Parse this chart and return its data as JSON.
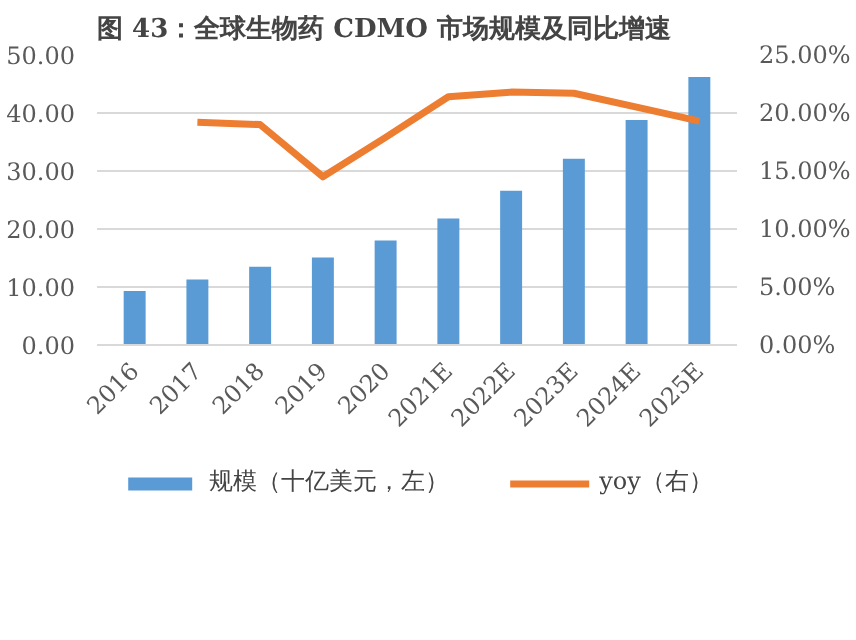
{
  "chart_data": {
    "type": "bar",
    "title": "图 43：全球生物药 CDMO 市场规模及同比增速",
    "categories": [
      "2016",
      "2017",
      "2018",
      "2019",
      "2020",
      "2021E",
      "2022E",
      "2023E",
      "2024E",
      "2025E"
    ],
    "series": [
      {
        "name": "规模（十亿美元，左）",
        "color": "#5b9bd5",
        "values": [
          9.3,
          11.3,
          13.5,
          15.1,
          18.0,
          21.8,
          26.6,
          32.1,
          38.8,
          46.2
        ]
      },
      {
        "name": "yoy（右）",
        "type": "line",
        "axis": "y2",
        "color": "#ed7d31",
        "values": [
          null,
          19.2,
          19.0,
          14.5,
          17.9,
          21.4,
          21.8,
          21.7,
          20.5,
          19.3
        ]
      }
    ],
    "ylim": [
      0,
      50
    ],
    "yticks": [
      {
        "value": 0,
        "label": "0.00"
      },
      {
        "value": 10,
        "label": "10.00"
      },
      {
        "value": 20,
        "label": "20.00"
      },
      {
        "value": 30,
        "label": "30.00"
      },
      {
        "value": 40,
        "label": "40.00"
      },
      {
        "value": 50,
        "label": "50.00"
      }
    ],
    "y2lim": [
      0,
      25
    ],
    "y2ticks": [
      {
        "value": 0,
        "label": "0.00%"
      },
      {
        "value": 5,
        "label": "5.00%"
      },
      {
        "value": 10,
        "label": "10.00%"
      },
      {
        "value": 15,
        "label": "15.00%"
      },
      {
        "value": 20,
        "label": "20.00%"
      },
      {
        "value": 25,
        "label": "25.00%"
      }
    ],
    "grid": "y",
    "legend": "bottom",
    "marker": "none",
    "line_style": "solid"
  }
}
